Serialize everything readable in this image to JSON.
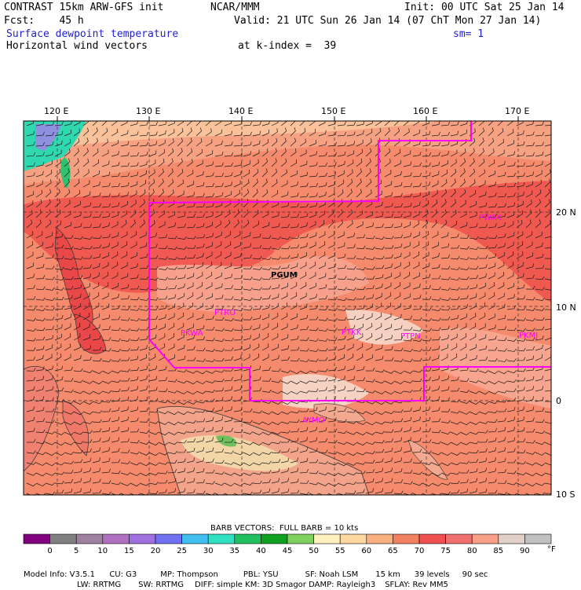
{
  "header": {
    "model": "CONTRAST 15km ARW-GFS init",
    "org": "NCAR/MMM",
    "init": "Init: 00 UTC Sat 25 Jan 14",
    "fcst": "Fcst:    45 h",
    "valid": "Valid: 21 UTC Sun 26 Jan 14 (07 ChT Mon 27 Jan 14)",
    "field": "Surface dewpoint temperature",
    "smooth": "sm= 1",
    "vectors": "Horizontal wind vectors",
    "kindex": "at k-index =  39"
  },
  "map": {
    "lon_labels": [
      "120 E",
      "130 E",
      "140 E",
      "150 E",
      "160 E",
      "170 E"
    ],
    "lat_labels": [
      "20 N",
      "10 N",
      "0",
      "10 S"
    ],
    "regions": {
      "pgum": "PGUM",
      "pwak": "PWAK",
      "ptro": "PTRO",
      "pkwa": "PKWA",
      "ptkk": "PTKK",
      "ptpn": "PTPN",
      "pkmj": "PKMJ",
      "ayi": "AYMO"
    }
  },
  "colorbar": {
    "title": "BARB VECTORS:  FULL BARB = 10 kts",
    "unit": "°F",
    "ticks": [
      "0",
      "5",
      "10",
      "15",
      "20",
      "25",
      "30",
      "35",
      "40",
      "45",
      "50",
      "55",
      "60",
      "65",
      "70",
      "75",
      "80",
      "85",
      "90"
    ],
    "colors": [
      "#800080",
      "#808080",
      "#a080a0",
      "#b070c0",
      "#a070e0",
      "#7070f0",
      "#40c0f0",
      "#30e0c0",
      "#20c060",
      "#10a020",
      "#80d060",
      "#fff0c0",
      "#fcd8a0",
      "#f8b080",
      "#f08060",
      "#f05050",
      "#f07070",
      "#f8a088",
      "#e0d0c8",
      "#c0c0c0"
    ]
  },
  "footer": {
    "line1": [
      "Model Info: V3.5.1",
      "CU: G3",
      "MP: Thompson",
      "PBL: YSU",
      "SF: Noah LSM",
      "15 km",
      "39 levels",
      "90 sec"
    ],
    "line2": [
      "LW: RRTMG",
      "SW: RRTMG",
      "DIFF: simple KM: 3D Smagor DAMP: Rayleigh3",
      "SFLAY: Rev MM5"
    ]
  }
}
